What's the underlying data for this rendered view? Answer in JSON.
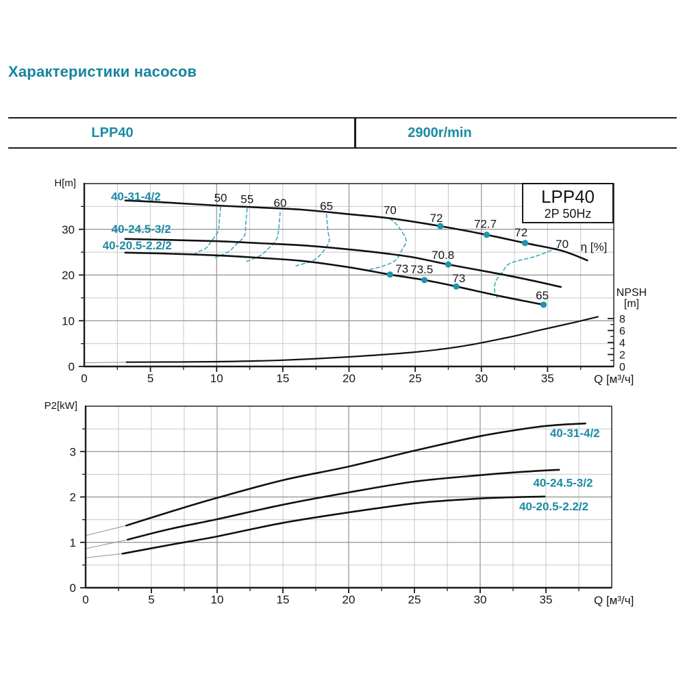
{
  "page": {
    "title": "Характеристики насосов"
  },
  "header": {
    "model": "LPP40",
    "speed": "2900r/min"
  },
  "colors": {
    "teal": "#1b8ba6",
    "title_teal": "#16849f",
    "dot": "#1f96ad",
    "dash": "#4aabc2",
    "curve": "#111111",
    "grid_minor": "#c6c6c6",
    "grid_major": "#8f8f8f",
    "axis": "#1a1a1a",
    "lead": "#9a9a9a",
    "text": "#151515"
  },
  "chart_data": [
    {
      "type": "line",
      "title_box": {
        "line1": "LPP40",
        "line2": "2P  50Hz"
      },
      "x_title": "Q [м³/ч]",
      "y_title": "H[m]",
      "y2_title_1": "NPSH",
      "y2_title_2": "[m]",
      "xlim": [
        0,
        40
      ],
      "ylim": [
        0,
        40
      ],
      "y2lim": [
        0,
        8
      ],
      "x_tick_labels": [
        0,
        5,
        10,
        15,
        20,
        25,
        30,
        35
      ],
      "y_tick_labels": [
        0,
        10,
        20,
        30
      ],
      "y2_tick_labels": [
        0,
        2,
        4,
        6,
        8
      ],
      "series": [
        {
          "name": "40-31-4/2",
          "label_pos": [
            3.9,
            37.2
          ],
          "points": [
            [
              3.1,
              36.3
            ],
            [
              6,
              35.9
            ],
            [
              10,
              35.2
            ],
            [
              13,
              34.8
            ],
            [
              16.4,
              34.3
            ],
            [
              20,
              33.3
            ],
            [
              23.1,
              32.4
            ],
            [
              26.9,
              30.7
            ],
            [
              30.4,
              28.8
            ],
            [
              33.3,
              27.0
            ],
            [
              36.1,
              25.3
            ],
            [
              38,
              23.2
            ]
          ]
        },
        {
          "name": "40-24.5-3/2",
          "label_pos": [
            4.3,
            30.1
          ],
          "points": [
            [
              3.1,
              27.9
            ],
            [
              6,
              27.7
            ],
            [
              10,
              27.4
            ],
            [
              13,
              27.0
            ],
            [
              16.4,
              26.5
            ],
            [
              20,
              25.6
            ],
            [
              23.1,
              24.6
            ],
            [
              25,
              23.8
            ],
            [
              27.5,
              22.3
            ],
            [
              30.9,
              20.5
            ],
            [
              33.5,
              19.0
            ],
            [
              36,
              17.4
            ]
          ]
        },
        {
          "name": "40-20.5-2.2/2",
          "label_pos": [
            4.0,
            26.5
          ],
          "points": [
            [
              3.1,
              24.9
            ],
            [
              6,
              24.7
            ],
            [
              10,
              24.3
            ],
            [
              13,
              23.8
            ],
            [
              16.4,
              23.1
            ],
            [
              20,
              21.7
            ],
            [
              23.1,
              20.1
            ],
            [
              25.7,
              18.9
            ],
            [
              28.1,
              17.5
            ],
            [
              31.4,
              15.4
            ],
            [
              34.7,
              13.5
            ]
          ]
        }
      ],
      "npsh_curve": {
        "lead": [
          [
            0.1,
            0.62
          ],
          [
            3.2,
            0.72
          ]
        ],
        "points": [
          [
            3.2,
            0.72
          ],
          [
            10,
            0.8
          ],
          [
            15,
            1.05
          ],
          [
            20,
            1.6
          ],
          [
            25,
            2.4
          ],
          [
            28.6,
            3.4
          ],
          [
            31.9,
            4.8
          ],
          [
            34.5,
            6.1
          ],
          [
            37.1,
            7.4
          ],
          [
            38.8,
            8.3
          ]
        ]
      },
      "efficiency_contours": [
        {
          "value": 50,
          "points": [
            [
              10.3,
              34.8
            ],
            [
              10.2,
              31.9
            ],
            [
              10.1,
              29.5
            ],
            [
              9.6,
              27.4
            ],
            [
              9.2,
              25.9
            ],
            [
              8.7,
              25.2
            ],
            [
              8.4,
              24.7
            ]
          ]
        },
        {
          "value": 55,
          "points": [
            [
              12.3,
              34.5
            ],
            [
              12.2,
              31.3
            ],
            [
              12.1,
              28.6
            ],
            [
              11.4,
              26.5
            ],
            [
              11.0,
              25.3
            ],
            [
              10.4,
              24.4
            ],
            [
              9.9,
              23.8
            ]
          ]
        },
        {
          "value": 60,
          "points": [
            [
              14.8,
              33.7
            ],
            [
              14.7,
              30.4
            ],
            [
              14.5,
              27.7
            ],
            [
              13.8,
              25.5
            ],
            [
              13.2,
              24.1
            ],
            [
              12.1,
              22.8
            ]
          ]
        },
        {
          "value": 65,
          "points": [
            [
              18.3,
              33.3
            ],
            [
              18.4,
              29.8
            ],
            [
              18.5,
              27.4
            ],
            [
              18.0,
              25.0
            ],
            [
              17.3,
              23.2
            ],
            [
              16.0,
              22.0
            ]
          ]
        },
        {
          "value": 70,
          "points": [
            [
              23.1,
              32.3
            ],
            [
              23.7,
              30.7
            ],
            [
              24.3,
              27.7
            ],
            [
              24.0,
              25.5
            ],
            [
              23.5,
              23.2
            ],
            [
              22.5,
              21.9
            ],
            [
              21.4,
              21.1
            ]
          ]
        },
        {
          "value": 70,
          "points": [
            [
              35.7,
              25.9
            ],
            [
              34.1,
              24.1
            ],
            [
              32.2,
              22.6
            ],
            [
              31.6,
              20.7
            ],
            [
              31.1,
              18.7
            ],
            [
              31.0,
              16.6
            ],
            [
              31.3,
              14.5
            ]
          ]
        }
      ],
      "efficiency_dots": [
        [
          26.9,
          30.7
        ],
        [
          30.4,
          28.8
        ],
        [
          33.3,
          27.0
        ],
        [
          27.5,
          22.3
        ],
        [
          23.1,
          20.1
        ],
        [
          25.7,
          18.9
        ],
        [
          28.1,
          17.5
        ],
        [
          34.7,
          13.5
        ]
      ],
      "efficiency_labels": [
        {
          "text": "50",
          "pos": [
            10.3,
            36.9
          ]
        },
        {
          "text": "55",
          "pos": [
            12.3,
            36.6
          ]
        },
        {
          "text": "60",
          "pos": [
            14.8,
            35.8
          ]
        },
        {
          "text": "65",
          "pos": [
            18.3,
            35.1
          ]
        },
        {
          "text": "70",
          "pos": [
            23.1,
            34.2
          ]
        },
        {
          "text": "72",
          "pos": [
            26.6,
            32.5
          ]
        },
        {
          "text": "72.7",
          "pos": [
            30.3,
            31.2
          ]
        },
        {
          "text": "72",
          "pos": [
            33.0,
            29.4
          ]
        },
        {
          "text": "70",
          "pos": [
            36.1,
            26.8
          ]
        },
        {
          "text": "η [%]",
          "pos": [
            38.5,
            26.2
          ]
        },
        {
          "text": "70.8",
          "pos": [
            27.1,
            24.4
          ]
        },
        {
          "text": "73",
          "pos": [
            24.0,
            21.4
          ]
        },
        {
          "text": "73.5",
          "pos": [
            25.5,
            21.3
          ]
        },
        {
          "text": "73",
          "pos": [
            28.3,
            19.3
          ]
        },
        {
          "text": "65",
          "pos": [
            34.6,
            15.6
          ]
        }
      ]
    },
    {
      "type": "line",
      "x_title": "Q [м³/ч]",
      "y_title": "P2[kW]",
      "xlim": [
        0,
        40
      ],
      "ylim": [
        0,
        4
      ],
      "x_tick_labels": [
        0,
        5,
        10,
        15,
        20,
        25,
        30,
        35
      ],
      "y_tick_labels": [
        0,
        1,
        2,
        3
      ],
      "series": [
        {
          "name": "40-31-4/2",
          "label_pos": [
            37.2,
            3.41
          ],
          "lead": [
            [
              0,
              1.15
            ],
            [
              3.1,
              1.37
            ]
          ],
          "points": [
            [
              3.1,
              1.37
            ],
            [
              6.5,
              1.68
            ],
            [
              10,
              1.98
            ],
            [
              15,
              2.37
            ],
            [
              20,
              2.67
            ],
            [
              25,
              3.02
            ],
            [
              30,
              3.34
            ],
            [
              34,
              3.53
            ],
            [
              36,
              3.59
            ],
            [
              38,
              3.62
            ]
          ]
        },
        {
          "name": "40-24.5-3/2",
          "label_pos": [
            36.3,
            2.32
          ],
          "lead": [
            [
              0,
              0.86
            ],
            [
              3.2,
              1.06
            ]
          ],
          "points": [
            [
              3.2,
              1.06
            ],
            [
              6.5,
              1.3
            ],
            [
              10,
              1.51
            ],
            [
              15,
              1.83
            ],
            [
              20,
              2.1
            ],
            [
              25,
              2.34
            ],
            [
              30,
              2.48
            ],
            [
              33,
              2.55
            ],
            [
              36,
              2.6
            ]
          ]
        },
        {
          "name": "40-20.5-2.2/2",
          "label_pos": [
            35.6,
            1.8
          ],
          "lead": [
            [
              0,
              0.66
            ],
            [
              2.8,
              0.75
            ]
          ],
          "points": [
            [
              2.8,
              0.75
            ],
            [
              6.5,
              0.95
            ],
            [
              10,
              1.13
            ],
            [
              15,
              1.43
            ],
            [
              20,
              1.66
            ],
            [
              25,
              1.86
            ],
            [
              28,
              1.93
            ],
            [
              31,
              1.98
            ],
            [
              34.9,
              2.01
            ]
          ]
        }
      ]
    }
  ]
}
